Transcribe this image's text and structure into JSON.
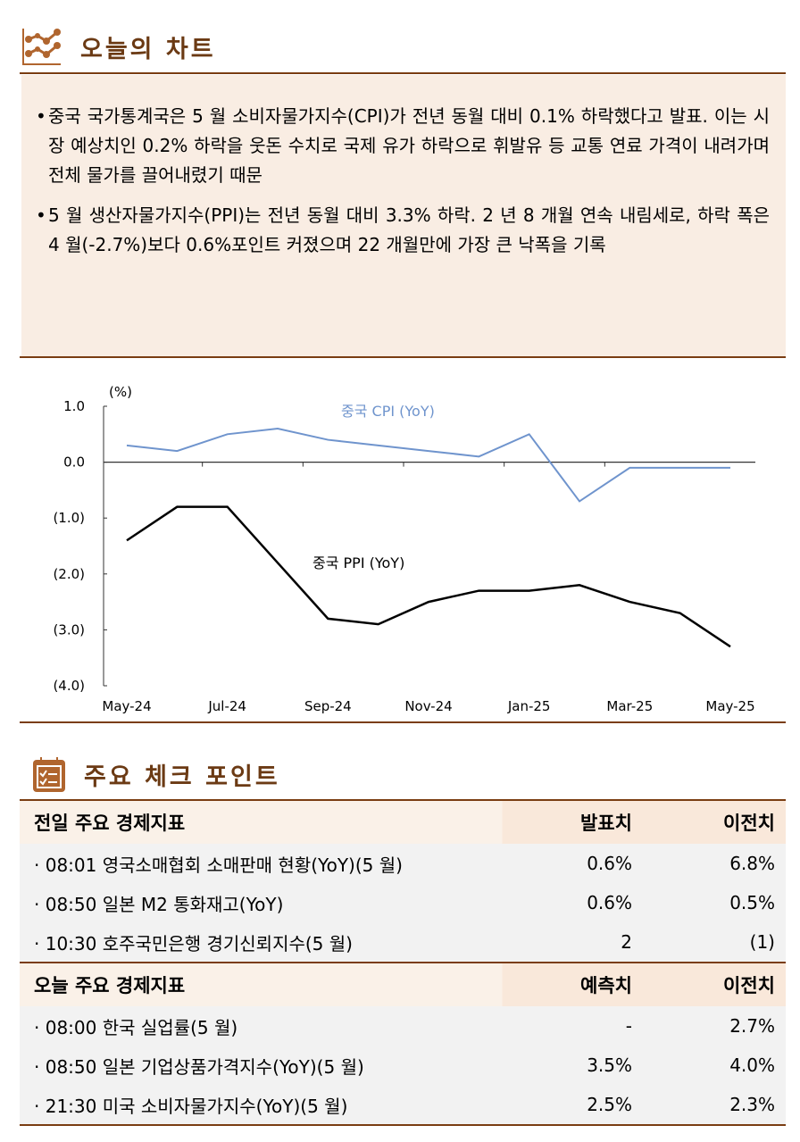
{
  "section1": {
    "title": "오늘의 차트",
    "icon": "line-chart-icon"
  },
  "summary": {
    "bullets": [
      "중국 국가통계국은 5 월 소비자물가지수(CPI)가 전년 동월 대비 0.1% 하락했다고 발표. 이는 시장 예상치인 0.2% 하락을 웃돈 수치로 국제 유가 하락으로 휘발유 등 교통 연료 가격이 내려가며 전체 물가를 끌어내렸기 때문",
      "5 월 생산자물가지수(PPI)는 전년 동월 대비 3.3% 하락. 2 년 8 개월 연속 내림세로, 하락 폭은 4 월(-2.7%)보다 0.6%포인트 커졌으며 22 개월만에 가장 큰 낙폭을 기록"
    ]
  },
  "chart_data": {
    "type": "line",
    "ylabel": "(%)",
    "ylim": [
      -4.0,
      1.0
    ],
    "yticks": [
      "1.0",
      "0.0",
      "(1.0)",
      "(2.0)",
      "(3.0)",
      "(4.0)"
    ],
    "ytick_values": [
      1,
      0,
      -1,
      -2,
      -3,
      -4
    ],
    "x": [
      "May-24",
      "Jun-24",
      "Jul-24",
      "Aug-24",
      "Sep-24",
      "Oct-24",
      "Nov-24",
      "Dec-24",
      "Jan-25",
      "Feb-25",
      "Mar-25",
      "Apr-25",
      "May-25"
    ],
    "xtick_labels": [
      "May-24",
      "Jul-24",
      "Sep-24",
      "Nov-24",
      "Jan-25",
      "Mar-25",
      "May-25"
    ],
    "grid": false,
    "series": [
      {
        "name": "중국 CPI (YoY)",
        "color": "#6f94cd",
        "values": [
          0.3,
          0.2,
          0.5,
          0.6,
          0.4,
          0.3,
          0.2,
          0.1,
          0.5,
          -0.7,
          -0.1,
          -0.1,
          -0.1
        ]
      },
      {
        "name": "중국 PPI (YoY)",
        "color": "#000000",
        "values": [
          -1.4,
          -0.8,
          -0.8,
          -1.8,
          -2.8,
          -2.9,
          -2.5,
          -2.3,
          -2.3,
          -2.2,
          -2.5,
          -2.7,
          -3.3
        ]
      }
    ]
  },
  "section2": {
    "title": "주요 체크 포인트",
    "icon": "calendar-checklist-icon"
  },
  "table1": {
    "header": [
      "전일 주요 경제지표",
      "발표치",
      "이전치"
    ],
    "rows": [
      [
        "· 08:01 영국소매협회 소매판매 현황(YoY)(5 월)",
        "0.6%",
        "6.8%"
      ],
      [
        "· 08:50 일본 M2 통화재고(YoY)",
        "0.6%",
        "0.5%"
      ],
      [
        "· 10:30 호주국민은행 경기신뢰지수(5 월)",
        "2",
        "(1)"
      ]
    ]
  },
  "table2": {
    "header": [
      "오늘 주요 경제지표",
      "예측치",
      "이전치"
    ],
    "rows": [
      [
        "· 08:00 한국 실업률(5 월)",
        "-",
        "2.7%"
      ],
      [
        "· 08:50 일본 기업상품가격지수(YoY)(5 월)",
        "3.5%",
        "4.0%"
      ],
      [
        "· 21:30 미국 소비자물가지수(YoY)(5 월)",
        "2.5%",
        "2.3%"
      ]
    ]
  }
}
